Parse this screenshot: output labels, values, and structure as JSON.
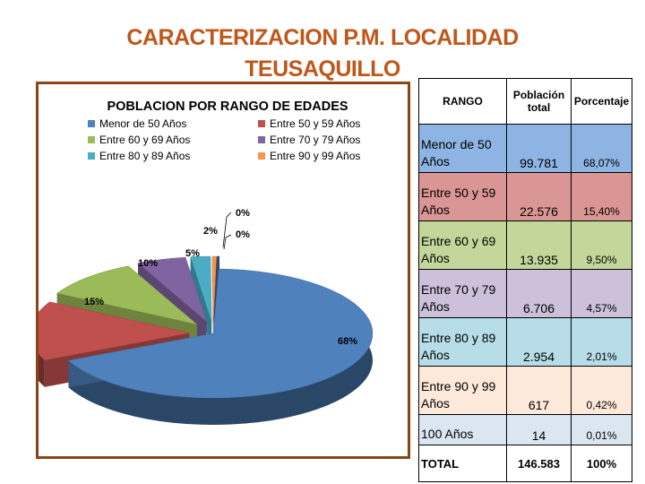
{
  "header": {
    "title_line1": "CARACTERIZACION P.M.  LOCALIDAD",
    "title_line2": "TEUSAQUILLO"
  },
  "chart_data": {
    "type": "pie",
    "title": "POBLACION  POR RANGO DE EDADES",
    "legend_position": "top",
    "slices": [
      {
        "label": "Menor de 50 Años",
        "value": 68,
        "data_label": "68%",
        "color": "#4f81bd"
      },
      {
        "label": "Entre 50 y 59 Años",
        "value": 15,
        "data_label": "15%",
        "color": "#c0504d"
      },
      {
        "label": "Entre 60  y  69 Años",
        "value": 10,
        "data_label": "10%",
        "color": "#9bbb59"
      },
      {
        "label": "Entre 70 y 79 Años",
        "value": 5,
        "data_label": "5%",
        "color": "#8064a2"
      },
      {
        "label": "Entre 80 y 89 Años",
        "value": 2,
        "data_label": "2%",
        "color": "#4bacc6"
      },
      {
        "label": "Entre 90 y 99 Años",
        "value": 0.42,
        "data_label": "0%",
        "color": "#f79646"
      },
      {
        "label": "",
        "value": 0.01,
        "data_label": "0%",
        "color": "#2c4d75"
      }
    ]
  },
  "table": {
    "headers": {
      "rango": "RANGO",
      "poblacion": "Población total",
      "porcentaje": "Porcentaje"
    },
    "rows": [
      {
        "rango": "Menor de 50 Años",
        "poblacion": "99.781",
        "porcentaje": "68,07%",
        "color": "#8db4e2"
      },
      {
        "rango": "Entre 50 y 59 Años",
        "poblacion": "22.576",
        "porcentaje": "15,40%",
        "color": "#da9694"
      },
      {
        "rango": "Entre 60  y 69 Años",
        "poblacion": "13.935",
        "porcentaje": "9,50%",
        "color": "#c4d79b"
      },
      {
        "rango": "Entre 70 y 79 Años",
        "poblacion": "6.706",
        "porcentaje": "4,57%",
        "color": "#ccc0da"
      },
      {
        "rango": "Entre 80 y 89 Años",
        "poblacion": "2.954",
        "porcentaje": "2,01%",
        "color": "#b7dee8"
      },
      {
        "rango": "Entre 90 y 99 Años",
        "poblacion": "617",
        "porcentaje": "0,42%",
        "color": "#fde9d9"
      },
      {
        "rango": "100 Años",
        "poblacion": "14",
        "porcentaje": "0,01%",
        "color": "#dce6f1"
      }
    ],
    "total": {
      "rango": "TOTAL",
      "poblacion": "146.583",
      "porcentaje": "100%"
    }
  }
}
